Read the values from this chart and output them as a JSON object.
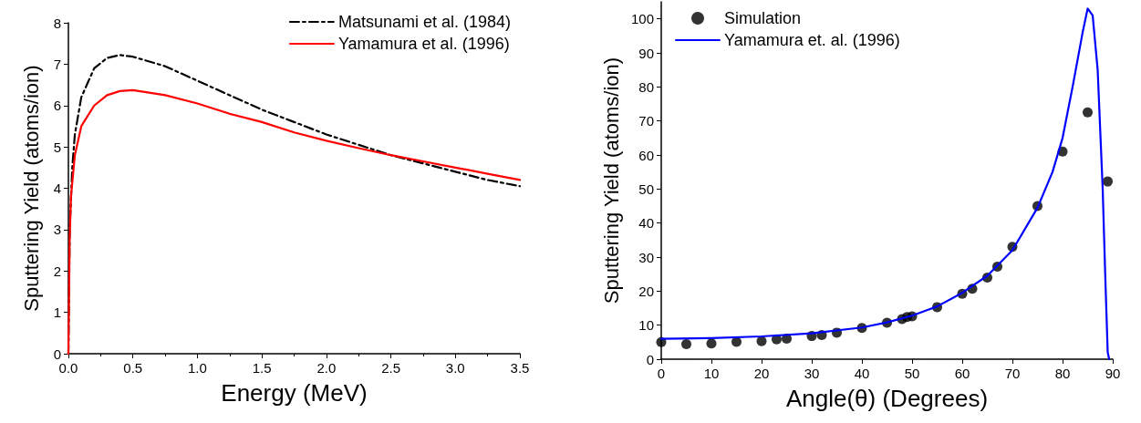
{
  "chart_data": [
    {
      "type": "line",
      "xlabel": "Energy (MeV)",
      "ylabel": "Sputtering Yield (atoms/ion)",
      "xlim": [
        0,
        3.5
      ],
      "xticks": [
        {
          "value": 0,
          "label": "0.0"
        },
        0.5,
        {
          "value": 1,
          "label": "1.0"
        },
        1.5,
        {
          "value": 2,
          "label": "2.0"
        },
        2.5,
        {
          "value": 3,
          "label": "3.0"
        },
        3.5
      ],
      "ylim": [
        0,
        8
      ],
      "yticks": [
        0,
        1,
        2,
        3,
        4,
        5,
        6,
        7,
        8
      ],
      "legend": "top right",
      "grid": false,
      "marker": "none",
      "series": [
        {
          "name": "Matsunami et al. (1984)",
          "color": "#000000",
          "line_style": "dashed",
          "x": [
            0,
            0.01,
            0.03,
            0.05,
            0.1,
            0.2,
            0.3,
            0.4,
            0.5,
            0.75,
            1.0,
            1.25,
            1.5,
            1.75,
            2.0,
            2.25,
            2.5,
            2.75,
            3.0,
            3.25,
            3.5
          ],
          "values": [
            0,
            3,
            4.5,
            5.3,
            6.2,
            6.9,
            7.15,
            7.22,
            7.18,
            6.95,
            6.6,
            6.25,
            5.9,
            5.6,
            5.3,
            5.05,
            4.8,
            4.6,
            4.4,
            4.2,
            4.05
          ]
        },
        {
          "name": "Yamamura et al. (1996)",
          "color": "#ff0000",
          "line_style": "solid",
          "x": [
            0,
            0.01,
            0.02,
            0.05,
            0.1,
            0.2,
            0.3,
            0.4,
            0.5,
            0.75,
            1.0,
            1.25,
            1.5,
            1.75,
            2.0,
            2.25,
            2.5,
            2.75,
            3.0,
            3.25,
            3.5
          ],
          "values": [
            0,
            2.8,
            3.8,
            4.8,
            5.5,
            6.0,
            6.25,
            6.35,
            6.37,
            6.25,
            6.05,
            5.8,
            5.6,
            5.35,
            5.15,
            4.97,
            4.8,
            4.65,
            4.5,
            4.35,
            4.2
          ]
        }
      ]
    },
    {
      "type": "scatter",
      "xlabel": "Angle(θ) (Degrees)",
      "ylabel": "Sputtering Yield (atoms/ion)",
      "xlim": [
        0,
        90
      ],
      "xticks": [
        0,
        10,
        20,
        30,
        40,
        50,
        60,
        70,
        80,
        90
      ],
      "ylim": [
        0,
        105
      ],
      "yticks": [
        0,
        10,
        20,
        30,
        40,
        50,
        60,
        70,
        80,
        90,
        100
      ],
      "legend": "top left",
      "grid": false,
      "series": [
        {
          "name": "Simulation",
          "type": "scatter",
          "marker": "circle",
          "color": "#000000",
          "x": [
            0,
            5,
            10,
            15,
            20,
            23,
            25,
            30,
            32,
            35,
            40,
            45,
            48,
            49,
            50,
            55,
            60,
            62,
            65,
            67,
            70,
            75,
            80,
            85,
            89
          ],
          "values": [
            5,
            4.4,
            4.6,
            5.1,
            5.3,
            5.8,
            6,
            6.8,
            7.1,
            7.8,
            9.2,
            10.7,
            11.8,
            12.4,
            12.6,
            15.3,
            19.2,
            20.7,
            24,
            27.2,
            33,
            45,
            61,
            72.5,
            52.2
          ]
        },
        {
          "name": "Yamamura et. al. (1996)",
          "type": "line",
          "marker": "none",
          "line_style": "solid",
          "color": "#0000ff",
          "x": [
            0,
            10,
            20,
            30,
            40,
            45,
            50,
            55,
            60,
            65,
            70,
            75,
            78,
            80,
            82,
            84,
            85,
            86,
            87,
            88,
            88.5,
            89,
            89.3
          ],
          "values": [
            6,
            6.2,
            6.7,
            7.6,
            9.3,
            10.8,
            12.8,
            15.5,
            19.5,
            24.5,
            32,
            44.5,
            55,
            65,
            80,
            96,
            103,
            101,
            85,
            50,
            25,
            2,
            0
          ]
        }
      ]
    }
  ]
}
